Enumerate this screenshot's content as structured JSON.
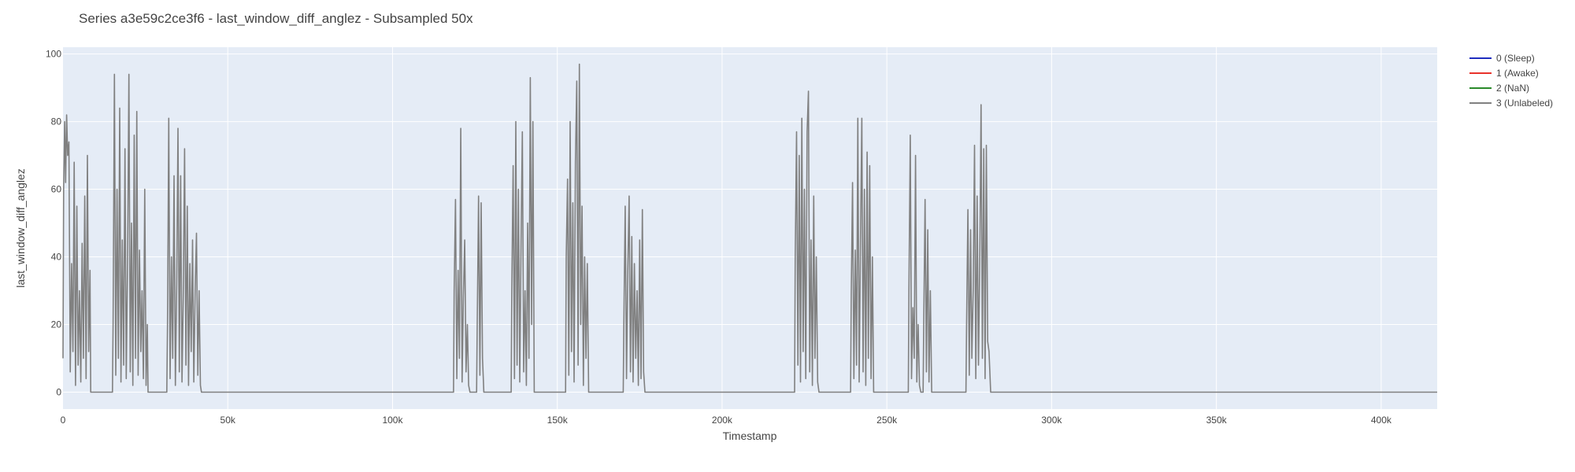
{
  "chart_data": {
    "type": "line",
    "title": "Series a3e59c2ce3f6 - last_window_diff_anglez - Subsampled 50x",
    "xlabel": "Timestamp",
    "ylabel": "last_window_diff_anglez",
    "xlim": [
      0,
      417000
    ],
    "ylim": [
      -5,
      102
    ],
    "x_ticks": [
      {
        "value": 0,
        "label": "0"
      },
      {
        "value": 50000,
        "label": "50k"
      },
      {
        "value": 100000,
        "label": "100k"
      },
      {
        "value": 150000,
        "label": "150k"
      },
      {
        "value": 200000,
        "label": "200k"
      },
      {
        "value": 250000,
        "label": "250k"
      },
      {
        "value": 300000,
        "label": "300k"
      },
      {
        "value": 350000,
        "label": "350k"
      },
      {
        "value": 400000,
        "label": "400k"
      }
    ],
    "y_ticks": [
      {
        "value": 0,
        "label": "0"
      },
      {
        "value": 20,
        "label": "20"
      },
      {
        "value": 40,
        "label": "40"
      },
      {
        "value": 60,
        "label": "60"
      },
      {
        "value": 80,
        "label": "80"
      },
      {
        "value": 100,
        "label": "100"
      }
    ],
    "grid": true,
    "legend_position": "top-right",
    "colors": {
      "plot_bg": "#e5ecf6",
      "grid": "#ffffff",
      "text": "#444444"
    },
    "series": [
      {
        "name": "0 (Sleep)",
        "color": "#1f2dbf",
        "points": []
      },
      {
        "name": "1 (Awake)",
        "color": "#e8322b",
        "points": []
      },
      {
        "name": "2 (NaN)",
        "color": "#2a8a2a",
        "points": []
      },
      {
        "name": "3 (Unlabeled)",
        "color": "#808080",
        "points": [
          [
            0,
            10
          ],
          [
            200,
            60
          ],
          [
            500,
            80
          ],
          [
            800,
            62
          ],
          [
            1100,
            82
          ],
          [
            1400,
            70
          ],
          [
            1800,
            74
          ],
          [
            2200,
            6
          ],
          [
            2600,
            38
          ],
          [
            3000,
            12
          ],
          [
            3400,
            68
          ],
          [
            3800,
            2
          ],
          [
            4200,
            55
          ],
          [
            4600,
            8
          ],
          [
            5000,
            30
          ],
          [
            5400,
            3
          ],
          [
            5800,
            44
          ],
          [
            6200,
            10
          ],
          [
            6600,
            58
          ],
          [
            7000,
            4
          ],
          [
            7400,
            70
          ],
          [
            7800,
            12
          ],
          [
            8200,
            36
          ],
          [
            8400,
            0
          ],
          [
            15000,
            0
          ],
          [
            15200,
            20
          ],
          [
            15600,
            94
          ],
          [
            16000,
            5
          ],
          [
            16400,
            60
          ],
          [
            16800,
            10
          ],
          [
            17200,
            84
          ],
          [
            17600,
            3
          ],
          [
            18000,
            45
          ],
          [
            18400,
            8
          ],
          [
            18800,
            72
          ],
          [
            19200,
            4
          ],
          [
            19600,
            38
          ],
          [
            20000,
            94
          ],
          [
            20400,
            6
          ],
          [
            20800,
            50
          ],
          [
            21200,
            2
          ],
          [
            21600,
            76
          ],
          [
            22000,
            10
          ],
          [
            22400,
            83
          ],
          [
            22800,
            5
          ],
          [
            23200,
            42
          ],
          [
            23600,
            12
          ],
          [
            24000,
            30
          ],
          [
            24400,
            4
          ],
          [
            24800,
            60
          ],
          [
            25200,
            2
          ],
          [
            25600,
            20
          ],
          [
            25800,
            0
          ],
          [
            31500,
            0
          ],
          [
            31700,
            20
          ],
          [
            32100,
            81
          ],
          [
            32500,
            4
          ],
          [
            32900,
            40
          ],
          [
            33300,
            10
          ],
          [
            33700,
            64
          ],
          [
            34100,
            2
          ],
          [
            34500,
            32
          ],
          [
            34900,
            78
          ],
          [
            35300,
            6
          ],
          [
            35700,
            64
          ],
          [
            36100,
            3
          ],
          [
            36500,
            28
          ],
          [
            36900,
            72
          ],
          [
            37300,
            8
          ],
          [
            37700,
            55
          ],
          [
            38100,
            2
          ],
          [
            38500,
            38
          ],
          [
            38900,
            12
          ],
          [
            39300,
            45
          ],
          [
            39700,
            3
          ],
          [
            40100,
            30
          ],
          [
            40500,
            47
          ],
          [
            40900,
            5
          ],
          [
            41300,
            30
          ],
          [
            41700,
            2
          ],
          [
            42000,
            0
          ],
          [
            118500,
            0
          ],
          [
            118700,
            30
          ],
          [
            119100,
            57
          ],
          [
            119500,
            4
          ],
          [
            119900,
            36
          ],
          [
            120300,
            10
          ],
          [
            120700,
            78
          ],
          [
            121100,
            3
          ],
          [
            121500,
            28
          ],
          [
            121900,
            45
          ],
          [
            122300,
            6
          ],
          [
            122700,
            20
          ],
          [
            123100,
            2
          ],
          [
            123500,
            0
          ],
          [
            125500,
            0
          ],
          [
            125700,
            20
          ],
          [
            126100,
            58
          ],
          [
            126500,
            5
          ],
          [
            126900,
            56
          ],
          [
            127300,
            10
          ],
          [
            127700,
            0
          ],
          [
            136000,
            0
          ],
          [
            136200,
            30
          ],
          [
            136600,
            67
          ],
          [
            137000,
            4
          ],
          [
            137400,
            80
          ],
          [
            137800,
            8
          ],
          [
            138200,
            60
          ],
          [
            138600,
            3
          ],
          [
            139000,
            45
          ],
          [
            139400,
            77
          ],
          [
            139800,
            6
          ],
          [
            140200,
            30
          ],
          [
            140600,
            2
          ],
          [
            141000,
            50
          ],
          [
            141400,
            10
          ],
          [
            141800,
            93
          ],
          [
            142200,
            20
          ],
          [
            142600,
            80
          ],
          [
            143000,
            0
          ],
          [
            152500,
            0
          ],
          [
            152700,
            40
          ],
          [
            153100,
            63
          ],
          [
            153500,
            5
          ],
          [
            153900,
            80
          ],
          [
            154300,
            12
          ],
          [
            154700,
            56
          ],
          [
            155100,
            3
          ],
          [
            155500,
            68
          ],
          [
            155900,
            92
          ],
          [
            156300,
            8
          ],
          [
            156700,
            97
          ],
          [
            157100,
            20
          ],
          [
            157500,
            55
          ],
          [
            157900,
            2
          ],
          [
            158300,
            40
          ],
          [
            158700,
            10
          ],
          [
            159100,
            38
          ],
          [
            159500,
            0
          ],
          [
            170000,
            0
          ],
          [
            170200,
            20
          ],
          [
            170600,
            55
          ],
          [
            171000,
            4
          ],
          [
            171400,
            36
          ],
          [
            171800,
            58
          ],
          [
            172200,
            6
          ],
          [
            172600,
            46
          ],
          [
            173000,
            3
          ],
          [
            173400,
            38
          ],
          [
            173800,
            10
          ],
          [
            174200,
            30
          ],
          [
            174600,
            2
          ],
          [
            175000,
            45
          ],
          [
            175400,
            4
          ],
          [
            175800,
            54
          ],
          [
            176200,
            6
          ],
          [
            176600,
            0
          ],
          [
            222000,
            0
          ],
          [
            222200,
            40
          ],
          [
            222600,
            77
          ],
          [
            223000,
            8
          ],
          [
            223400,
            70
          ],
          [
            223800,
            3
          ],
          [
            224200,
            81
          ],
          [
            224600,
            12
          ],
          [
            225000,
            60
          ],
          [
            225400,
            4
          ],
          [
            225800,
            77
          ],
          [
            226200,
            89
          ],
          [
            226600,
            6
          ],
          [
            227000,
            45
          ],
          [
            227400,
            2
          ],
          [
            227800,
            58
          ],
          [
            228200,
            10
          ],
          [
            228600,
            40
          ],
          [
            229000,
            3
          ],
          [
            229400,
            0
          ],
          [
            239000,
            0
          ],
          [
            239200,
            30
          ],
          [
            239600,
            62
          ],
          [
            240000,
            4
          ],
          [
            240400,
            42
          ],
          [
            240800,
            8
          ],
          [
            241200,
            81
          ],
          [
            241600,
            3
          ],
          [
            242000,
            45
          ],
          [
            242400,
            81
          ],
          [
            242800,
            6
          ],
          [
            243200,
            60
          ],
          [
            243600,
            2
          ],
          [
            244000,
            71
          ],
          [
            244400,
            10
          ],
          [
            244800,
            67
          ],
          [
            245200,
            4
          ],
          [
            245600,
            40
          ],
          [
            246000,
            0
          ],
          [
            256500,
            0
          ],
          [
            256700,
            30
          ],
          [
            257100,
            76
          ],
          [
            257500,
            4
          ],
          [
            257900,
            25
          ],
          [
            258300,
            10
          ],
          [
            258700,
            70
          ],
          [
            259100,
            3
          ],
          [
            259500,
            20
          ],
          [
            259900,
            2
          ],
          [
            260300,
            0
          ],
          [
            261000,
            0
          ],
          [
            261200,
            20
          ],
          [
            261600,
            57
          ],
          [
            262000,
            6
          ],
          [
            262400,
            48
          ],
          [
            262800,
            3
          ],
          [
            263200,
            30
          ],
          [
            263600,
            0
          ],
          [
            274000,
            0
          ],
          [
            274200,
            20
          ],
          [
            274600,
            54
          ],
          [
            275000,
            5
          ],
          [
            275400,
            48
          ],
          [
            275800,
            10
          ],
          [
            276200,
            30
          ],
          [
            276600,
            73
          ],
          [
            277000,
            4
          ],
          [
            277400,
            58
          ],
          [
            277800,
            8
          ],
          [
            278200,
            40
          ],
          [
            278600,
            85
          ],
          [
            279000,
            10
          ],
          [
            279400,
            72
          ],
          [
            279800,
            4
          ],
          [
            280200,
            73
          ],
          [
            280600,
            15
          ],
          [
            281000,
            12
          ],
          [
            281500,
            0
          ],
          [
            417000,
            0
          ]
        ]
      }
    ]
  }
}
